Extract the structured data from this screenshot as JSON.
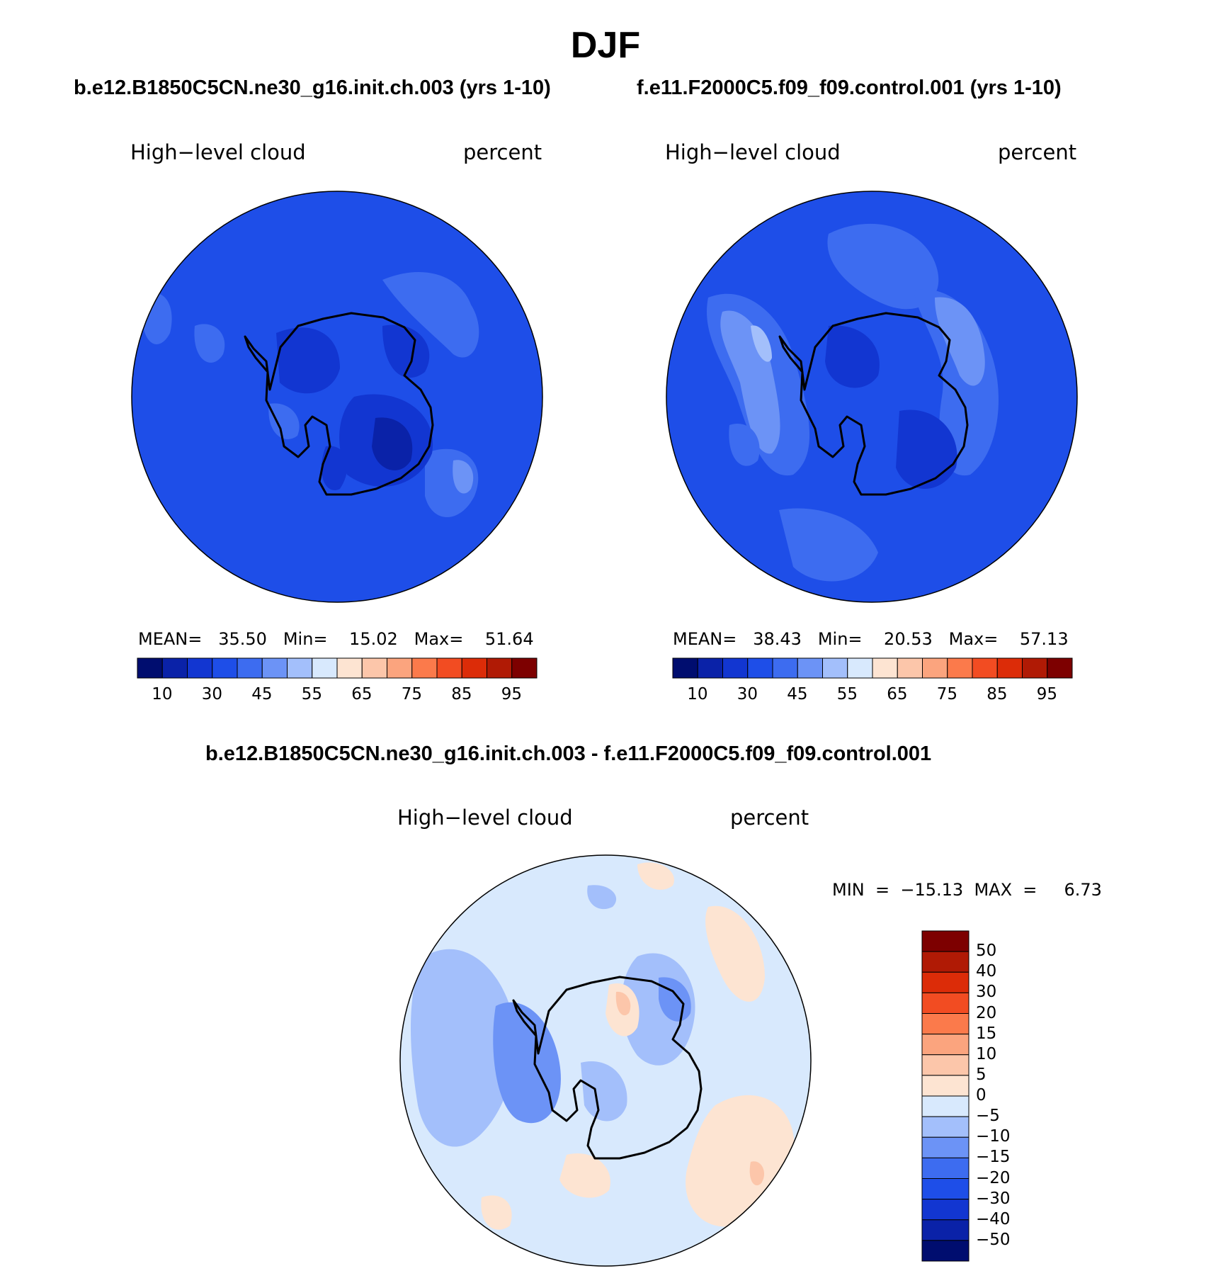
{
  "figure": {
    "season_title": "DJF",
    "diff_title": "b.e12.B1850C5CN.ne30_g16.init.ch.003 - f.e11.F2000C5.f09_f09.control.001"
  },
  "panels": [
    {
      "case_title": "b.e12.B1850C5CN.ne30_g16.init.ch.003 (yrs 1-10)",
      "variable": "High−level cloud",
      "units": "percent",
      "stats": "MEAN=   35.50   Min=    15.02   Max=    51.64"
    },
    {
      "case_title": "f.e11.F2000C5.f09_f09.control.001 (yrs 1-10)",
      "variable": "High−level cloud",
      "units": "percent",
      "stats": "MEAN=   38.43   Min=    20.53   Max=    57.13"
    },
    {
      "variable": "High−level cloud",
      "units": "percent",
      "stats": "MIN  =  −15.13  MAX  =     6.73"
    }
  ],
  "colorbars": {
    "horizontal": {
      "colors": [
        "#000d6f",
        "#0a22a8",
        "#1236d1",
        "#1e4ee8",
        "#3d6cf0",
        "#6c93f6",
        "#a3bffb",
        "#d8e9fd",
        "#fde4d2",
        "#fcc6aa",
        "#fba47e",
        "#fb7a4b",
        "#f24c22",
        "#dc2c08",
        "#b01a05",
        "#7d0000"
      ],
      "tick_labels": [
        "10",
        "30",
        "45",
        "55",
        "65",
        "75",
        "85",
        "95"
      ]
    },
    "vertical": {
      "colors": [
        "#7d0000",
        "#b01a05",
        "#dc2c08",
        "#f24c22",
        "#fb7a4b",
        "#fba47e",
        "#fcc6aa",
        "#fde4d2",
        "#d8e9fd",
        "#a3bffb",
        "#6c93f6",
        "#3d6cf0",
        "#1e4ee8",
        "#1236d1",
        "#0a22a8",
        "#000d6f"
      ],
      "tick_labels": [
        "50",
        "40",
        "30",
        "20",
        "15",
        "10",
        "5",
        "0",
        "−5",
        "−10",
        "−15",
        "−20",
        "−30",
        "−40",
        "−50"
      ]
    }
  },
  "map_colors": {
    "ocean_panel": "#1e4ee8",
    "level_35_45": "#3d6cf0",
    "level_25_35": "#1236d1",
    "level_15_25": "#0a22a8",
    "level_45_55": "#6c93f6",
    "level_55_65": "#a3bffb",
    "diff_base": "#d8e9fd",
    "diff_neg5": "#a3bffb",
    "diff_neg10": "#6c93f6",
    "diff_pos": "#fde4d2",
    "diff_pos5": "#fcc6aa"
  },
  "icons": [
    "antarctica-coastline"
  ]
}
